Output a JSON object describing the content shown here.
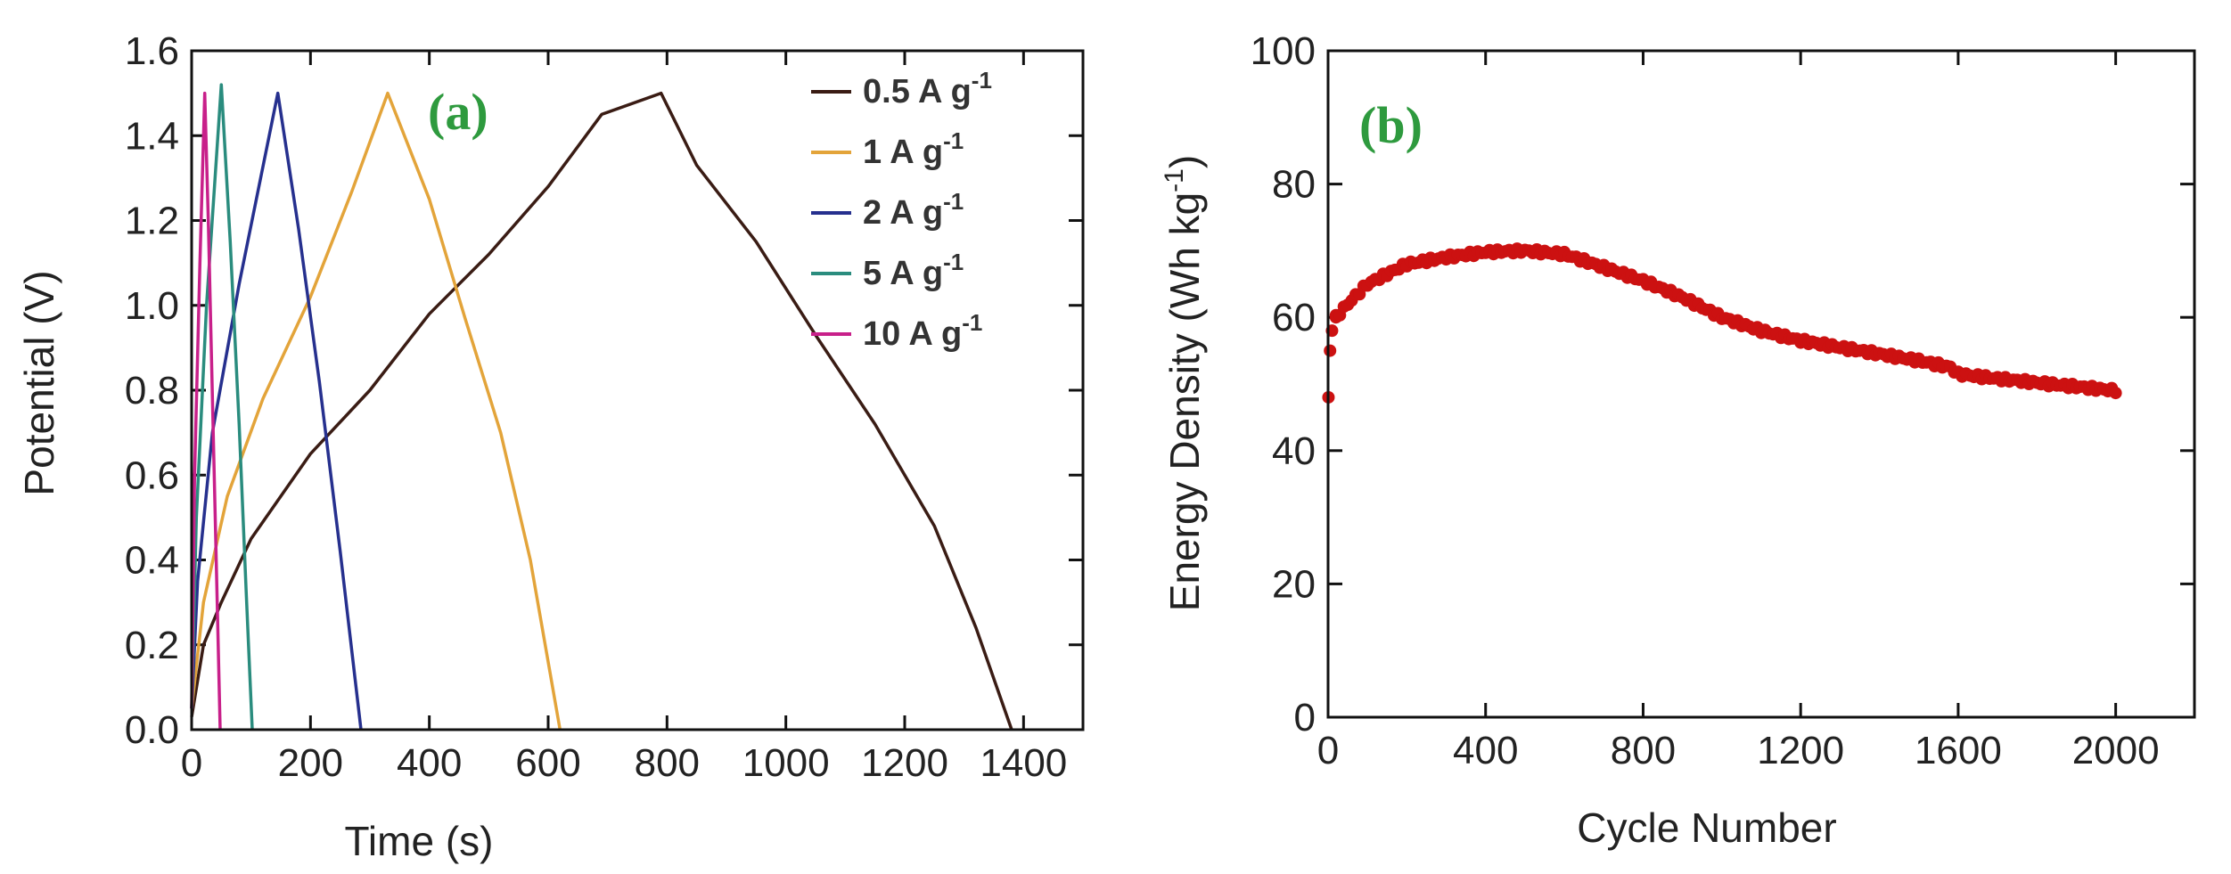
{
  "chart_data": [
    {
      "panel_label": "(a)",
      "type": "line",
      "xlabel": "Time (s)",
      "ylabel": "Potential (V)",
      "xlim": [
        0,
        1500
      ],
      "ylim": [
        0,
        1.6
      ],
      "xticks": [
        0,
        200,
        400,
        600,
        800,
        1000,
        1200,
        1400
      ],
      "yticks": [
        0.0,
        0.2,
        0.4,
        0.6,
        0.8,
        1.0,
        1.2,
        1.4,
        1.6
      ],
      "xtick_labels": [
        "0",
        "200",
        "400",
        "600",
        "800",
        "1000",
        "1200",
        "1400"
      ],
      "ytick_labels": [
        "0.0",
        "0.2",
        "0.4",
        "0.6",
        "0.8",
        "1.0",
        "1.2",
        "1.4",
        "1.6"
      ],
      "legend_position": "top-right",
      "series": [
        {
          "name": "0.5 A g",
          "sup": "-1",
          "color": "#3a1c14",
          "points": [
            [
              0,
              0.03
            ],
            [
              20,
              0.2
            ],
            [
              50,
              0.3
            ],
            [
              100,
              0.45
            ],
            [
              200,
              0.65
            ],
            [
              300,
              0.8
            ],
            [
              400,
              0.98
            ],
            [
              500,
              1.12
            ],
            [
              600,
              1.28
            ],
            [
              690,
              1.45
            ],
            [
              790,
              1.5
            ],
            [
              850,
              1.33
            ],
            [
              950,
              1.15
            ],
            [
              1050,
              0.93
            ],
            [
              1150,
              0.72
            ],
            [
              1250,
              0.48
            ],
            [
              1320,
              0.24
            ],
            [
              1380,
              0.0
            ]
          ]
        },
        {
          "name": "1 A g",
          "sup": "-1",
          "color": "#e3a43a",
          "points": [
            [
              0,
              0.05
            ],
            [
              20,
              0.3
            ],
            [
              60,
              0.55
            ],
            [
              120,
              0.78
            ],
            [
              200,
              1.02
            ],
            [
              270,
              1.27
            ],
            [
              330,
              1.5
            ],
            [
              400,
              1.25
            ],
            [
              460,
              0.97
            ],
            [
              520,
              0.7
            ],
            [
              570,
              0.4
            ],
            [
              620,
              0.0
            ]
          ]
        },
        {
          "name": "2 A g",
          "sup": "-1",
          "color": "#26308e",
          "points": [
            [
              0,
              0.05
            ],
            [
              10,
              0.35
            ],
            [
              35,
              0.7
            ],
            [
              80,
              1.05
            ],
            [
              145,
              1.5
            ],
            [
              180,
              1.18
            ],
            [
              215,
              0.82
            ],
            [
              250,
              0.42
            ],
            [
              285,
              0.0
            ]
          ]
        },
        {
          "name": "5 A g",
          "sup": "-1",
          "color": "#2a8c7e",
          "points": [
            [
              0,
              0.05
            ],
            [
              8,
              0.5
            ],
            [
              25,
              1.0
            ],
            [
              50,
              1.52
            ],
            [
              65,
              1.15
            ],
            [
              80,
              0.72
            ],
            [
              92,
              0.32
            ],
            [
              102,
              0.0
            ]
          ]
        },
        {
          "name": "10 A g",
          "sup": "-1",
          "color": "#c8208a",
          "points": [
            [
              0,
              0.05
            ],
            [
              5,
              0.6
            ],
            [
              14,
              1.1
            ],
            [
              22,
              1.5
            ],
            [
              28,
              1.2
            ],
            [
              36,
              0.72
            ],
            [
              43,
              0.3
            ],
            [
              48,
              0.0
            ]
          ]
        }
      ]
    },
    {
      "panel_label": "(b)",
      "type": "scatter",
      "xlabel": "Cycle Number",
      "ylabel": "Energy Density (Wh kg",
      "ylabel_sup": "-1",
      "ylabel_close": ")",
      "xlim": [
        0,
        2200
      ],
      "ylim": [
        0,
        100
      ],
      "xticks": [
        0,
        400,
        800,
        1200,
        1600,
        2000
      ],
      "yticks": [
        0,
        20,
        40,
        60,
        80,
        100
      ],
      "xtick_labels": [
        "0",
        "400",
        "800",
        "1200",
        "1600",
        "2000"
      ],
      "ytick_labels": [
        "0",
        "20",
        "40",
        "60",
        "80",
        "100"
      ],
      "series": [
        {
          "name": "Energy density",
          "color": "#cc1111",
          "anchors": [
            [
              1,
              48
            ],
            [
              5,
              55
            ],
            [
              10,
              58
            ],
            [
              20,
              60
            ],
            [
              50,
              62
            ],
            [
              100,
              65
            ],
            [
              200,
              68
            ],
            [
              300,
              69
            ],
            [
              400,
              69.8
            ],
            [
              500,
              70
            ],
            [
              600,
              69.5
            ],
            [
              700,
              67.5
            ],
            [
              800,
              65.5
            ],
            [
              900,
              63
            ],
            [
              1000,
              60
            ],
            [
              1100,
              58
            ],
            [
              1200,
              56.5
            ],
            [
              1300,
              55.5
            ],
            [
              1400,
              54.5
            ],
            [
              1500,
              53.5
            ],
            [
              1580,
              52.5
            ],
            [
              1600,
              51.5
            ],
            [
              1700,
              50.8
            ],
            [
              1800,
              50.2
            ],
            [
              1900,
              49.6
            ],
            [
              2000,
              49
            ]
          ]
        }
      ]
    }
  ]
}
